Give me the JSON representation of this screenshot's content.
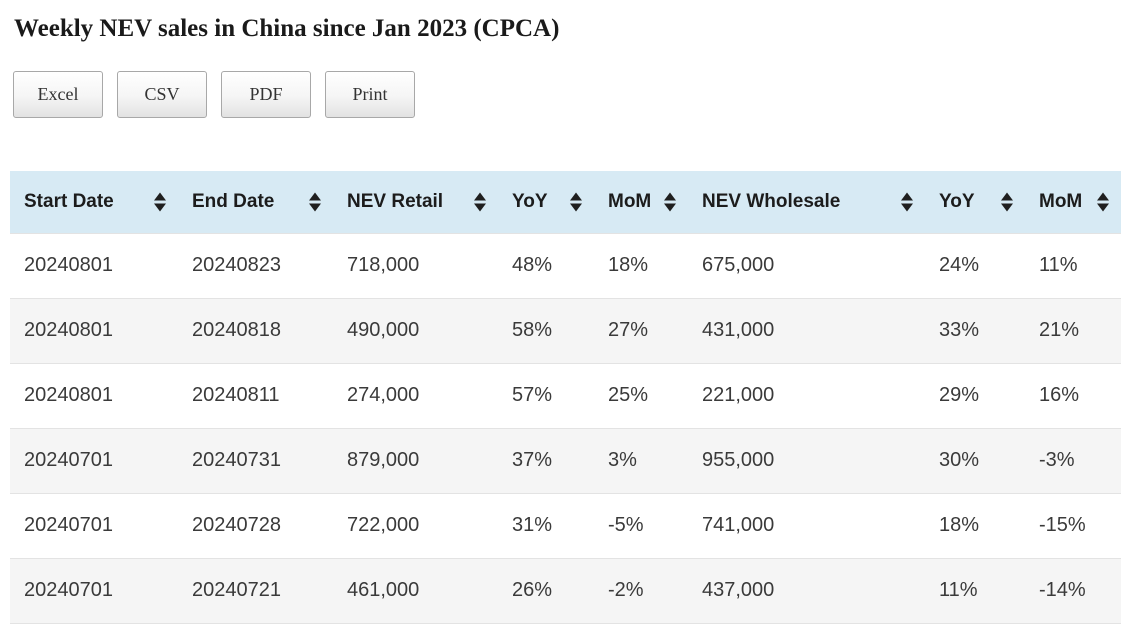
{
  "page": {
    "title": "Weekly NEV sales in China since Jan 2023 (CPCA)"
  },
  "toolbar": {
    "buttons": [
      "Excel",
      "CSV",
      "PDF",
      "Print"
    ]
  },
  "table": {
    "columns": [
      "Start Date",
      "End Date",
      "NEV Retail",
      "YoY",
      "MoM",
      "NEV Wholesale",
      "YoY",
      "MoM"
    ],
    "rows": [
      [
        "20240801",
        "20240823",
        "718,000",
        "48%",
        "18%",
        "675,000",
        "24%",
        "11%"
      ],
      [
        "20240801",
        "20240818",
        "490,000",
        "58%",
        "27%",
        "431,000",
        "33%",
        "21%"
      ],
      [
        "20240801",
        "20240811",
        "274,000",
        "57%",
        "25%",
        "221,000",
        "29%",
        "16%"
      ],
      [
        "20240701",
        "20240731",
        "879,000",
        "37%",
        "3%",
        "955,000",
        "30%",
        "-3%"
      ],
      [
        "20240701",
        "20240728",
        "722,000",
        "31%",
        "-5%",
        "741,000",
        "18%",
        "-15%"
      ],
      [
        "20240701",
        "20240721",
        "461,000",
        "26%",
        "-2%",
        "437,000",
        "11%",
        "-14%"
      ]
    ]
  },
  "colors": {
    "header_bg": "#d7eaf4",
    "row_alt_bg": "#f5f5f5",
    "row_border": "#e3e3e3",
    "text": "#3a3a3a"
  },
  "chart_data": {
    "type": "table",
    "title": "Weekly NEV sales in China since Jan 2023 (CPCA)",
    "columns": [
      "Start Date",
      "End Date",
      "NEV Retail",
      "YoY",
      "MoM",
      "NEV Wholesale",
      "YoY",
      "MoM"
    ],
    "rows": [
      [
        "20240801",
        "20240823",
        "718,000",
        "48%",
        "18%",
        "675,000",
        "24%",
        "11%"
      ],
      [
        "20240801",
        "20240818",
        "490,000",
        "58%",
        "27%",
        "431,000",
        "33%",
        "21%"
      ],
      [
        "20240801",
        "20240811",
        "274,000",
        "57%",
        "25%",
        "221,000",
        "29%",
        "16%"
      ],
      [
        "20240701",
        "20240731",
        "879,000",
        "37%",
        "3%",
        "955,000",
        "30%",
        "-3%"
      ],
      [
        "20240701",
        "20240728",
        "722,000",
        "31%",
        "-5%",
        "741,000",
        "18%",
        "-15%"
      ],
      [
        "20240701",
        "20240721",
        "461,000",
        "26%",
        "-2%",
        "437,000",
        "11%",
        "-14%"
      ]
    ]
  }
}
